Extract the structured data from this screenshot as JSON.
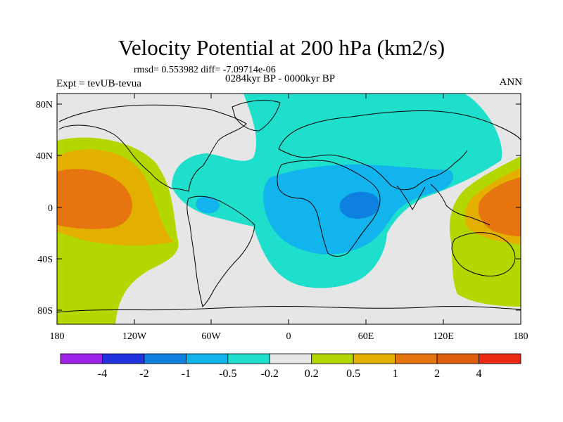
{
  "title": "Velocity Potential at 200 hPa (km2/s)",
  "stats": "rmsd= 0.553982 diff= -7.09714e-06",
  "experiment": "Expt = tevUB-tevua",
  "period": "0284kyr BP - 0000kyr BP",
  "season": "ANN",
  "map": {
    "projection": "cylindrical equidistant",
    "lon_range": [
      -180,
      180
    ],
    "lat_range": [
      -90,
      90
    ],
    "lat_ticks": [
      "80N",
      "40N",
      "0",
      "40S",
      "80S"
    ],
    "lon_ticks": [
      "180",
      "120W",
      "60W",
      "0",
      "60E",
      "120E",
      "180"
    ],
    "colors": {
      "purple": "#9b22e6",
      "blue_dark": "#2233dd",
      "blue": "#0d80e0",
      "blue_light": "#11b4ec",
      "cyan": "#1ddfcc",
      "neutral": "#e6e6e6",
      "yellow_green": "#b3d800",
      "orange_yellow": "#e3b000",
      "orange": "#e67510",
      "orange_red": "#de5f0c",
      "red": "#ec2a14"
    }
  },
  "colorbar": {
    "labels": [
      "-4",
      "-2",
      "-1",
      "-0.5",
      "-0.2",
      "0.2",
      "0.5",
      "1",
      "2",
      "4"
    ],
    "colors": [
      "#9b22e6",
      "#2233dd",
      "#0d80e0",
      "#11b4ec",
      "#1ddfcc",
      "#e6e6e6",
      "#b3d800",
      "#e3b000",
      "#e67510",
      "#de5f0c",
      "#ec2a14"
    ]
  }
}
